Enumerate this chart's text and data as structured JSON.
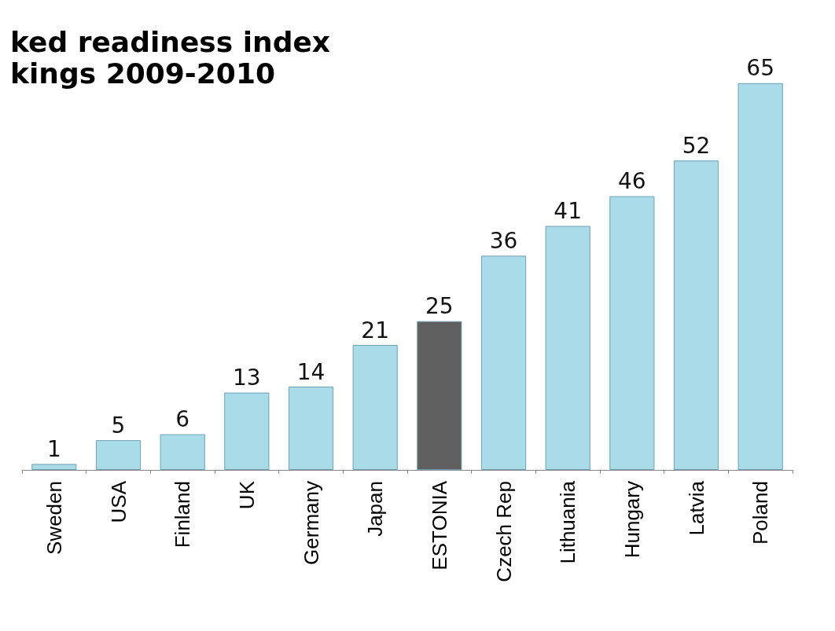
{
  "chart_data": {
    "type": "bar",
    "title": "ked readiness index\nkings 2009-2010",
    "categories": [
      "Sweden",
      "USA",
      "Finland",
      "UK",
      "Germany",
      "Japan",
      "ESTONIA",
      "Czech Rep",
      "Lithuania",
      "Hungary",
      "Latvia",
      "Poland"
    ],
    "values": [
      1,
      5,
      6,
      13,
      14,
      21,
      25,
      36,
      41,
      46,
      52,
      65
    ],
    "colors": [
      "#a9dbe9",
      "#a9dbe9",
      "#a9dbe9",
      "#a9dbe9",
      "#a9dbe9",
      "#a9dbe9",
      "#5f5f5f",
      "#a9dbe9",
      "#a9dbe9",
      "#a9dbe9",
      "#a9dbe9",
      "#a9dbe9"
    ],
    "data_labels": true
  }
}
